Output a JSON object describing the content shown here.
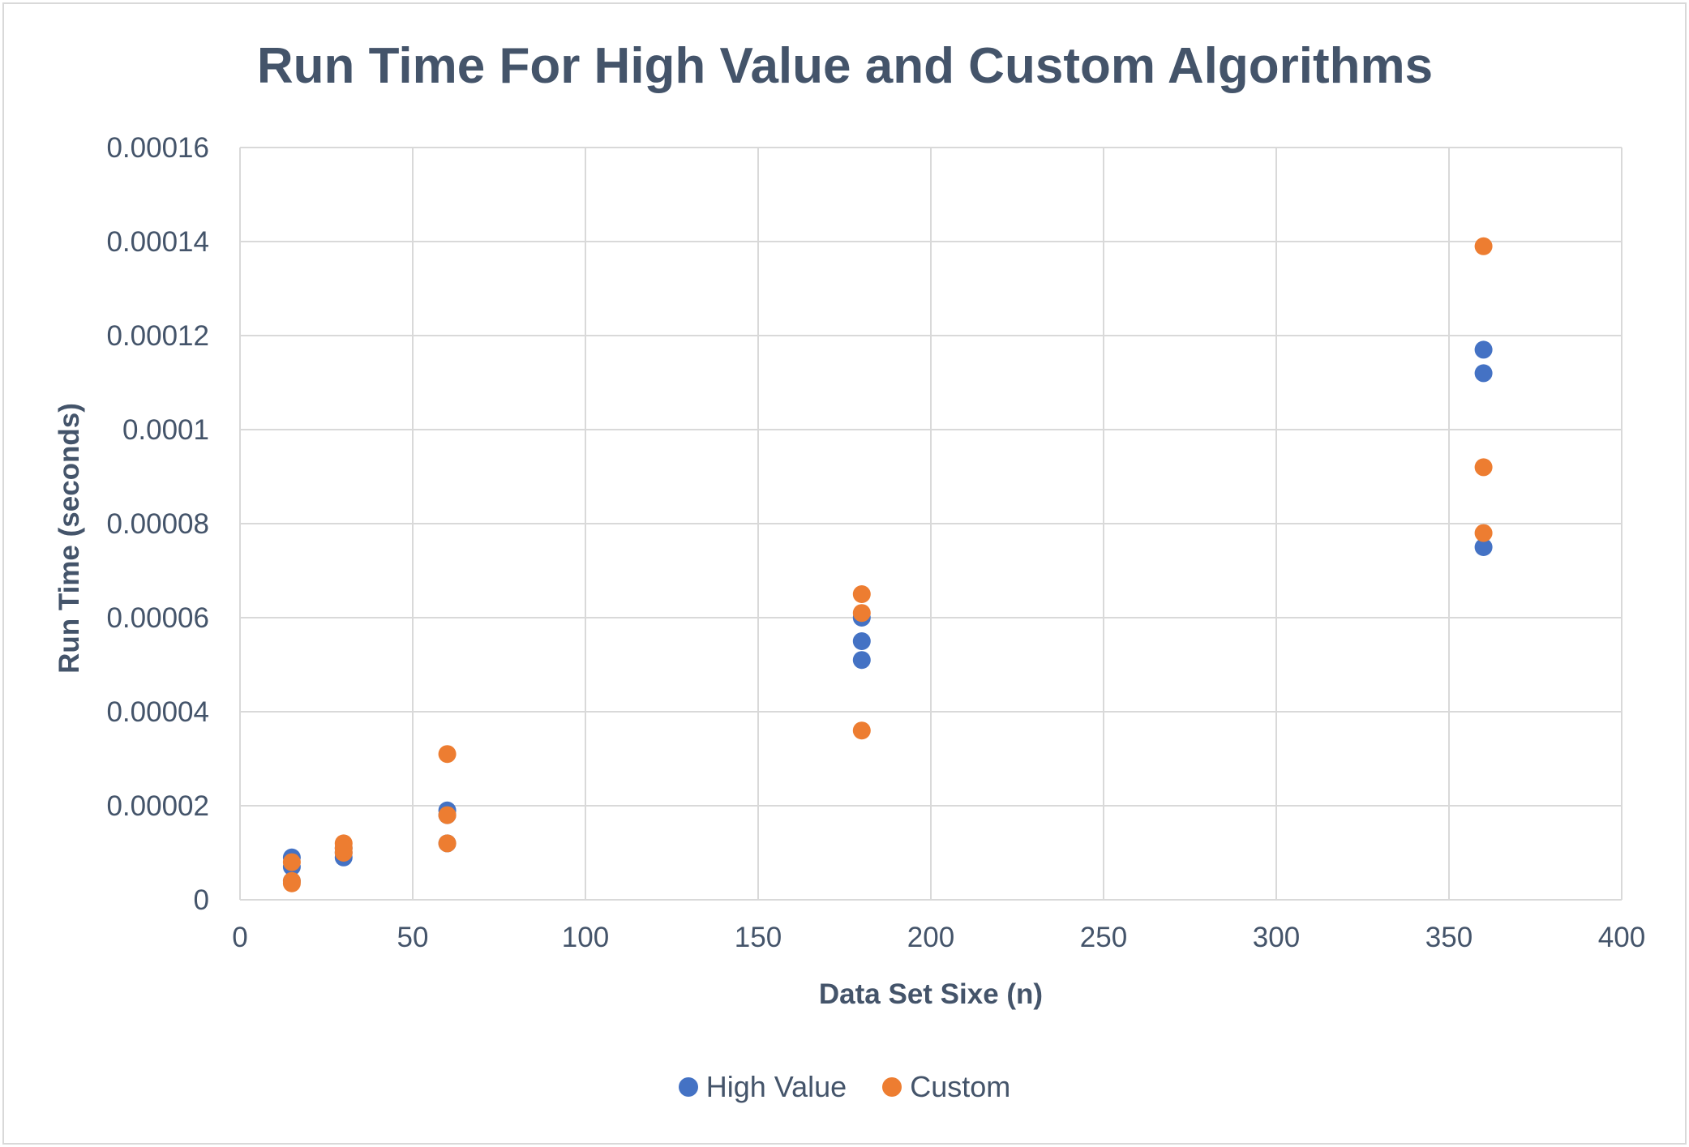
{
  "chart_data": {
    "type": "scatter",
    "title": "Run Time For High Value and Custom Algorithms",
    "xlabel": "Data Set Sixe (n)",
    "ylabel": "Run Time (seconds)",
    "xlim": [
      0,
      400
    ],
    "ylim": [
      0,
      0.00016
    ],
    "x_ticks": [
      0,
      50,
      100,
      150,
      200,
      250,
      300,
      350,
      400
    ],
    "y_ticks": [
      0,
      2e-05,
      4e-05,
      6e-05,
      8e-05,
      0.0001,
      0.00012,
      0.00014,
      0.00016
    ],
    "x_tick_labels": [
      "0",
      "50",
      "100",
      "150",
      "200",
      "250",
      "300",
      "350",
      "400"
    ],
    "y_tick_labels": [
      "0",
      "0.00002",
      "0.00004",
      "0.00006",
      "0.00008",
      "0.0001",
      "0.00012",
      "0.00014",
      "0.00016"
    ],
    "grid": true,
    "legend_position": "bottom",
    "series": [
      {
        "name": "High Value",
        "color": "#4472c4",
        "points": [
          [
            15,
            9e-06
          ],
          [
            15,
            7e-06
          ],
          [
            15,
            4e-06
          ],
          [
            30,
            9e-06
          ],
          [
            30,
            1.1e-05
          ],
          [
            30,
            1e-05
          ],
          [
            60,
            1.9e-05
          ],
          [
            60,
            1.8e-05
          ],
          [
            60,
            1.2e-05
          ],
          [
            180,
            6e-05
          ],
          [
            180,
            5.5e-05
          ],
          [
            180,
            5.1e-05
          ],
          [
            360,
            0.000117
          ],
          [
            360,
            0.000112
          ],
          [
            360,
            7.5e-05
          ]
        ]
      },
      {
        "name": "Custom",
        "color": "#ed7d31",
        "points": [
          [
            15,
            8e-06
          ],
          [
            15,
            4e-06
          ],
          [
            15,
            3.5e-06
          ],
          [
            30,
            1.2e-05
          ],
          [
            30,
            1e-05
          ],
          [
            30,
            1.1e-05
          ],
          [
            60,
            3.1e-05
          ],
          [
            60,
            1.8e-05
          ],
          [
            60,
            1.2e-05
          ],
          [
            180,
            6.5e-05
          ],
          [
            180,
            6.1e-05
          ],
          [
            180,
            3.6e-05
          ],
          [
            360,
            0.000139
          ],
          [
            360,
            9.2e-05
          ],
          [
            360,
            7.8e-05
          ]
        ]
      }
    ]
  },
  "style": {
    "text_color": "#44546a",
    "grid_color": "#d9d9d9"
  }
}
